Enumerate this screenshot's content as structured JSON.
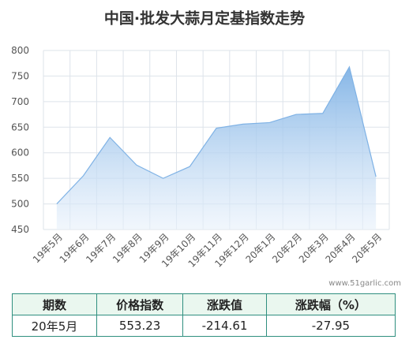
{
  "chart_data": {
    "type": "area",
    "title": "中国·批发大蒜月定基指数走势",
    "categories": [
      "19年5月",
      "19年6月",
      "19年7月",
      "19年8月",
      "19年9月",
      "19年10月",
      "19年11月",
      "19年12月",
      "20年1月",
      "20年2月",
      "20年3月",
      "20年4月",
      "20年5月"
    ],
    "values": [
      500,
      555,
      630,
      576,
      550,
      573,
      648,
      656,
      659,
      675,
      677,
      767.84,
      553.23
    ],
    "color": "#7fb2e5",
    "ylim": [
      450,
      800
    ],
    "yticks": [
      450,
      500,
      550,
      600,
      650,
      700,
      750,
      800
    ],
    "grid": true,
    "watermark": "www.51garlic.com"
  },
  "table": {
    "columns": [
      "期数",
      "价格指数",
      "涨跌值",
      "涨跌幅（%）"
    ],
    "rows": [
      [
        "20年5月",
        553.23,
        -214.61,
        -27.95
      ]
    ]
  }
}
